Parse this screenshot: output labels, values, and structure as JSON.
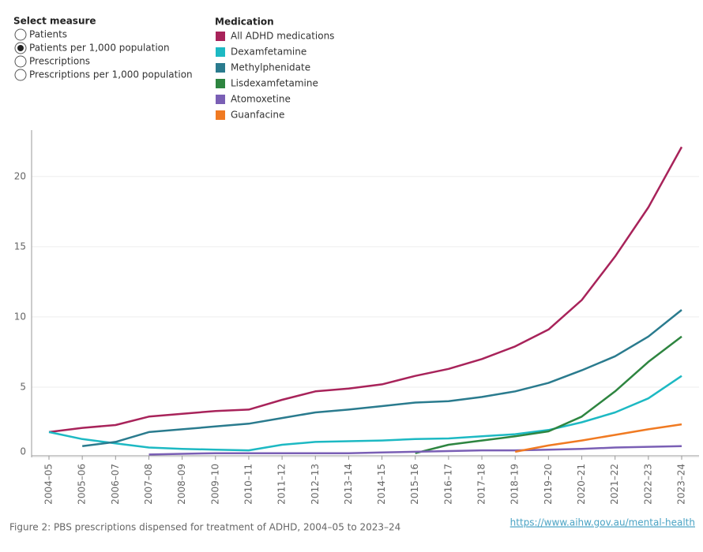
{
  "controls": {
    "title": "Select measure",
    "options": [
      "Patients",
      "Patients per 1,000 population",
      "Prescriptions",
      "Prescriptions per 1,000 population"
    ],
    "selected": 1
  },
  "chart_data": {
    "type": "line",
    "legend_title": "Medication",
    "categories": [
      "2004–05",
      "2005–06",
      "2006–07",
      "2007–08",
      "2008–09",
      "2009–10",
      "2010–11",
      "2011–12",
      "2012–13",
      "2013–14",
      "2014–15",
      "2015–16",
      "2016–17",
      "2017–18",
      "2018–19",
      "2019–20",
      "2020–21",
      "2021–22",
      "2022–23",
      "2023–24"
    ],
    "series": [
      {
        "name": "All ADHD medications",
        "color": "#a8235a",
        "values": [
          1.8,
          2.1,
          2.3,
          2.9,
          3.1,
          3.3,
          3.4,
          4.1,
          4.7,
          4.9,
          5.2,
          5.8,
          6.3,
          7.0,
          7.9,
          9.1,
          11.2,
          14.3,
          17.8,
          22.1
        ]
      },
      {
        "name": "Dexamfetamine",
        "color": "#1db9c3",
        "values": [
          1.8,
          1.3,
          1.0,
          0.7,
          0.6,
          0.55,
          0.5,
          0.9,
          1.1,
          1.15,
          1.2,
          1.3,
          1.35,
          1.5,
          1.65,
          1.95,
          2.5,
          3.2,
          4.2,
          5.8
        ]
      },
      {
        "name": "Methylphenidate",
        "color": "#2a7b8e",
        "values": [
          null,
          0.8,
          1.1,
          1.8,
          2.0,
          2.2,
          2.4,
          2.8,
          3.2,
          3.4,
          3.65,
          3.9,
          4.0,
          4.3,
          4.7,
          5.3,
          6.2,
          7.2,
          8.6,
          10.5
        ]
      },
      {
        "name": "Lisdexamfetamine",
        "color": "#2e8540",
        "values": [
          null,
          null,
          null,
          null,
          null,
          null,
          null,
          null,
          null,
          null,
          null,
          0.3,
          0.9,
          1.2,
          1.5,
          1.85,
          2.9,
          4.7,
          6.8,
          8.6
        ]
      },
      {
        "name": "Atomoxetine",
        "color": "#7a5fb5",
        "values": [
          null,
          null,
          null,
          0.2,
          0.25,
          0.3,
          0.3,
          0.3,
          0.3,
          0.3,
          0.35,
          0.4,
          0.45,
          0.5,
          0.5,
          0.55,
          0.6,
          0.7,
          0.75,
          0.8
        ]
      },
      {
        "name": "Guanfacine",
        "color": "#f07a22",
        "values": [
          null,
          null,
          null,
          null,
          null,
          null,
          null,
          null,
          null,
          null,
          null,
          null,
          null,
          null,
          0.4,
          0.85,
          1.2,
          1.6,
          2.0,
          2.35
        ]
      }
    ],
    "ylim": [
      0,
      23.3
    ],
    "yticks": [
      0,
      5,
      10,
      15,
      20
    ],
    "grid": true
  },
  "footer": {
    "caption": "Figure 2: PBS prescriptions dispensed for treatment of ADHD, 2004–05 to 2023–24",
    "link": "https://www.aihw.gov.au/mental-health"
  }
}
